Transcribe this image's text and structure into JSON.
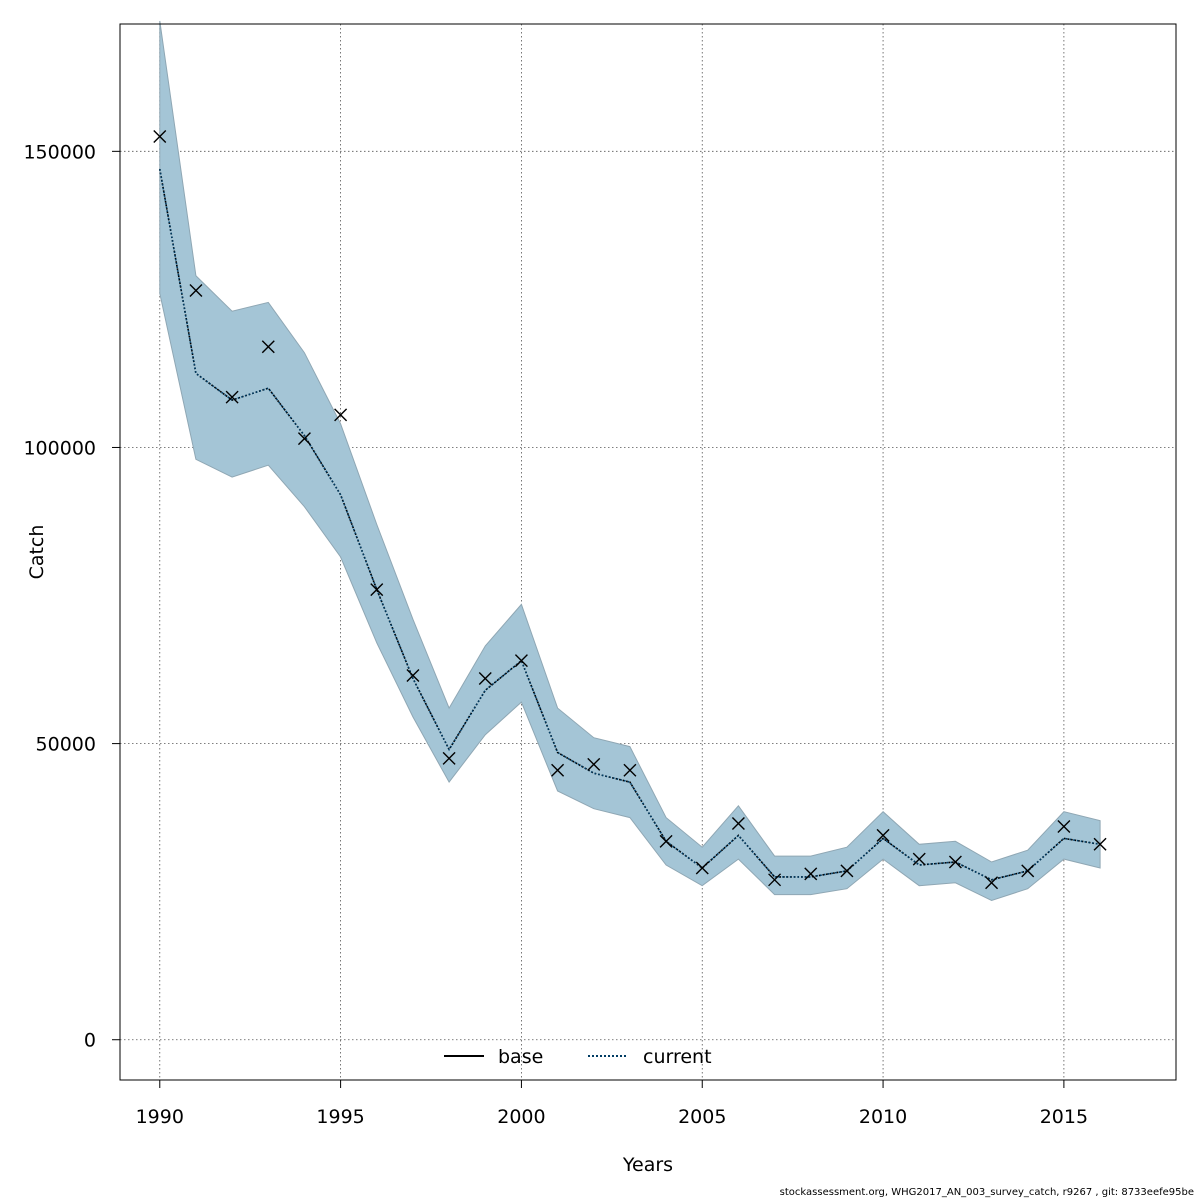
{
  "chart_data": {
    "type": "line",
    "title": "",
    "xlabel": "Years",
    "ylabel": "Catch",
    "xlim": [
      1988.9,
      2018.1
    ],
    "ylim": [
      -6800,
      171500
    ],
    "x_ticks": [
      1990,
      1995,
      2000,
      2005,
      2010,
      2015
    ],
    "y_ticks": [
      0,
      50000,
      100000,
      150000
    ],
    "grid": true,
    "legend_position": "bottom-center",
    "colors": {
      "band": "#a4c5d6",
      "band_edge": "#8fa7b4",
      "current": "#003c64",
      "base": "#000000",
      "points": "#000000"
    },
    "x": [
      1990,
      1991,
      1992,
      1993,
      1994,
      1995,
      1996,
      1997,
      1998,
      1999,
      2000,
      2001,
      2002,
      2003,
      2004,
      2005,
      2006,
      2007,
      2008,
      2009,
      2010,
      2011,
      2012,
      2013,
      2014,
      2015,
      2016
    ],
    "series": [
      {
        "name": "base",
        "style": "solid",
        "values": [
          147000,
          112500,
          108000,
          110000,
          102000,
          92000,
          76000,
          61000,
          49000,
          59000,
          64000,
          48500,
          45000,
          43500,
          33500,
          29000,
          34500,
          27500,
          27500,
          28500,
          34000,
          29500,
          30000,
          27000,
          28500,
          34000,
          33000
        ]
      },
      {
        "name": "current",
        "style": "dotted",
        "values": [
          147000,
          112500,
          108000,
          110000,
          102000,
          92000,
          76000,
          61000,
          49000,
          59000,
          64000,
          48500,
          45000,
          43500,
          33500,
          29000,
          34500,
          27500,
          27500,
          28500,
          34000,
          29500,
          30000,
          27000,
          28500,
          34000,
          33000
        ]
      }
    ],
    "band": {
      "upper": [
        172000,
        129000,
        123000,
        124500,
        116000,
        104000,
        87000,
        71000,
        56000,
        66500,
        73500,
        56000,
        51000,
        49500,
        37500,
        32500,
        39500,
        31000,
        31000,
        32500,
        38500,
        33000,
        33500,
        30000,
        32000,
        38500,
        37000
      ],
      "lower": [
        126000,
        98000,
        95000,
        97000,
        90000,
        81500,
        67000,
        54500,
        43500,
        51500,
        57000,
        42000,
        39000,
        37500,
        29500,
        26000,
        30500,
        24500,
        24500,
        25500,
        30500,
        26000,
        26500,
        23500,
        25500,
        30500,
        29000
      ]
    },
    "observed": {
      "x": [
        1990,
        1991,
        1992,
        1993,
        1994,
        1995,
        1996,
        1997,
        1998,
        1999,
        2000,
        2001,
        2002,
        2003,
        2004,
        2005,
        2006,
        2007,
        2008,
        2009,
        2010,
        2011,
        2012,
        2013,
        2014,
        2015,
        2016
      ],
      "y": [
        152500,
        126500,
        108500,
        117000,
        101500,
        105500,
        76000,
        61500,
        47500,
        61000,
        64000,
        45500,
        46500,
        45500,
        33500,
        29000,
        36500,
        27000,
        28000,
        28500,
        34500,
        30500,
        30000,
        26500,
        28500,
        36000,
        33000
      ]
    }
  },
  "footer": "stockassessment.org, WHG2017_AN_003_survey_catch, r9267 , git: 8733eefe95be"
}
